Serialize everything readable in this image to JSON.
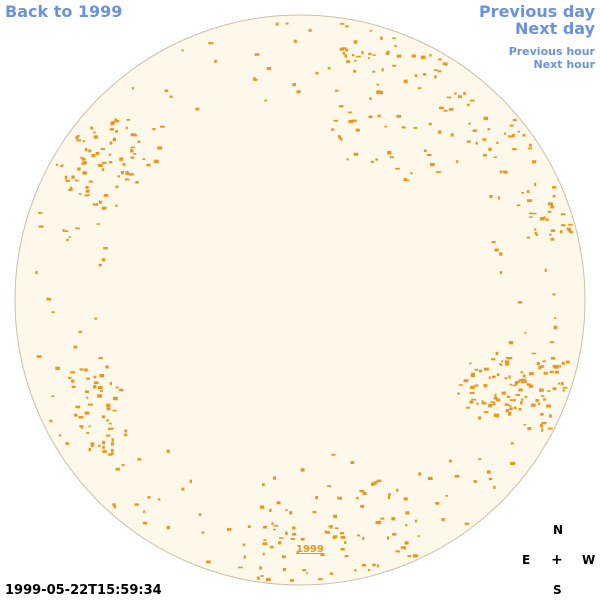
{
  "nav": {
    "back": "Back to 1999",
    "previous_day": "Previous day",
    "next_day": "Next day",
    "previous_hour": "Previous hour",
    "next_hour": "Next hour"
  },
  "disk": {
    "year_link": "1999",
    "disk_color": "#fdf8ea",
    "contour_color": "#e8961e",
    "link_color": "#6a93dc"
  },
  "compass": {
    "north": "N",
    "east": "E",
    "center": "+",
    "west": "W",
    "south": "S"
  },
  "timestamp": "1999-05-22T15:59:34"
}
